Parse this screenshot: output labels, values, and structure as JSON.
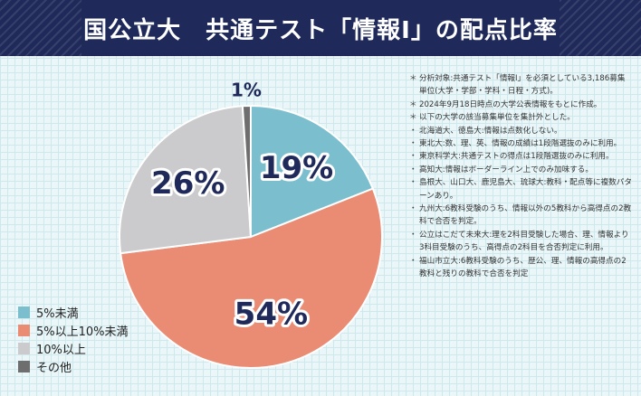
{
  "header": {
    "title": "国公立大　共通テスト「情報Ⅰ」の配点比率"
  },
  "chart_data": {
    "type": "pie",
    "categories": [
      "5%未満",
      "5%以上10%未満",
      "10%以上",
      "その他"
    ],
    "values": [
      19,
      54,
      26,
      1
    ],
    "labels": [
      "19%",
      "54%",
      "26%",
      "1%"
    ],
    "colors": [
      "#7bbfcf",
      "#ea8c74",
      "#cbcbcd",
      "#6e6e6e"
    ],
    "legend_position": "bottom-left"
  },
  "legend": {
    "items": [
      {
        "label": "5%未満",
        "color": "#7bbfcf"
      },
      {
        "label": "5%以上10%未満",
        "color": "#ea8c74"
      },
      {
        "label": "10%以上",
        "color": "#cbcbcd"
      },
      {
        "label": "その他",
        "color": "#6e6e6e"
      }
    ]
  },
  "notes": [
    {
      "mark": "＊",
      "text": "分析対象:共通テスト「情報Ⅰ」を必須としている3,186募集単位(大学・学部・学科・日程・方式)。"
    },
    {
      "mark": "＊",
      "text": "2024年9月18日時点の大学公表情報をもとに作成。"
    },
    {
      "mark": "＊",
      "text": "以下の大学の該当募集単位を集計外とした。"
    },
    {
      "mark": "・",
      "text": "北海道大、徳島大:情報は点数化しない。"
    },
    {
      "mark": "・",
      "text": "東北大:数、理、英、情報の成績は1段階選抜のみに利用。"
    },
    {
      "mark": "・",
      "text": "東京科学大:共通テストの得点は1段階選抜のみに利用。"
    },
    {
      "mark": "・",
      "text": "高知大:情報はボーダーライン上でのみ加味する。"
    },
    {
      "mark": "・",
      "text": "島根大、山口大、鹿児島大、琉球大:教科・配点等に複数パターンあり。"
    },
    {
      "mark": "・",
      "text": "九州大:6教科受験のうち、情報以外の5教科から高得点の2教科で合否を判定。"
    },
    {
      "mark": "・",
      "text": "公立はこだて未来大:理を2科目受験した場合、理、情報より3科目受験のうち、高得点の2科目を合否判定に利用。"
    },
    {
      "mark": "・",
      "text": "福山市立大:6教科受験のうち、歴公、理、情報の高得点の2教科と残りの教科で合否を判定"
    }
  ]
}
